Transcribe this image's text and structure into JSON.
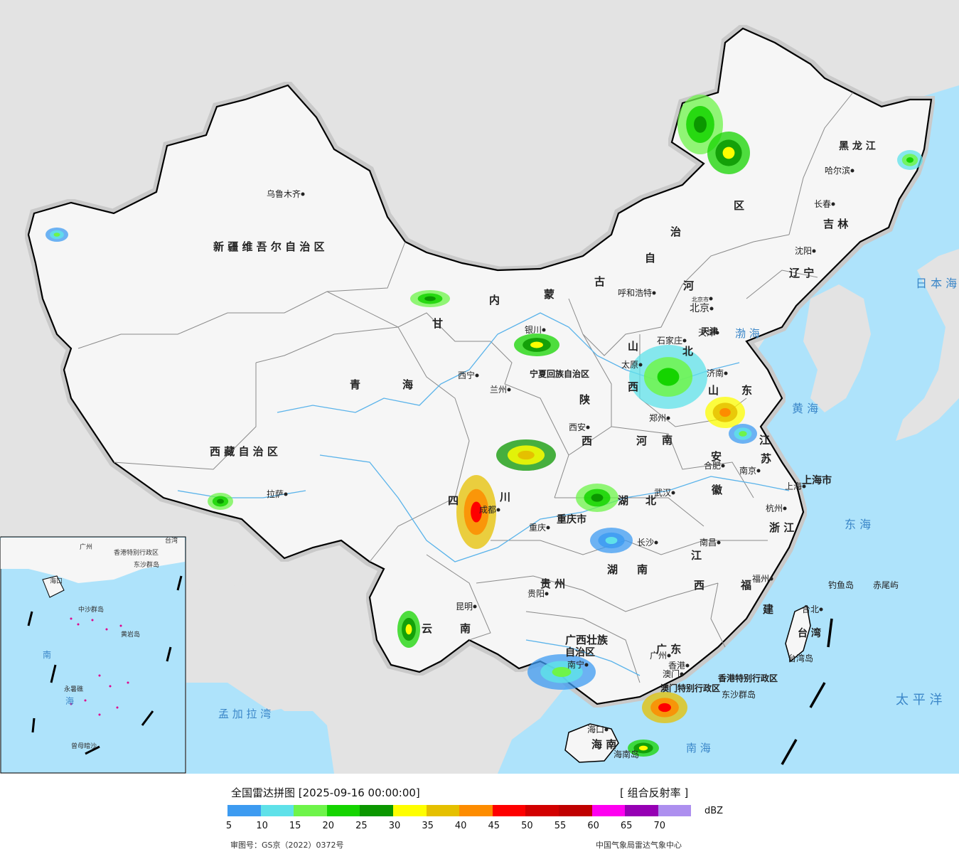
{
  "map": {
    "colors": {
      "sea": "#aee3fb",
      "foreign_land": "#e3e3e3",
      "china_land": "#f6f6f6",
      "border": "#000000",
      "province_line": "#8a8a8a",
      "river": "#5ab3ea"
    },
    "region_labels": [
      {
        "text": "新 疆 维 吾 尔 自 治 区",
        "kind": "province"
      },
      {
        "text": "西 藏 自 治 区",
        "kind": "province"
      },
      {
        "text": "青",
        "kind": "province"
      },
      {
        "text": "海",
        "kind": "province"
      },
      {
        "text": "甘",
        "kind": "province"
      },
      {
        "text": "内",
        "kind": "province"
      },
      {
        "text": "蒙",
        "kind": "province"
      },
      {
        "text": "古",
        "kind": "province"
      },
      {
        "text": "自",
        "kind": "province"
      },
      {
        "text": "治",
        "kind": "province"
      },
      {
        "text": "区",
        "kind": "province"
      },
      {
        "text": "黑 龙 江",
        "kind": "province"
      },
      {
        "text": "吉 林",
        "kind": "province"
      },
      {
        "text": "辽 宁",
        "kind": "province"
      },
      {
        "text": "河",
        "kind": "province"
      },
      {
        "text": "北",
        "kind": "province"
      },
      {
        "text": "山",
        "kind": "province"
      },
      {
        "text": "西",
        "kind": "province"
      },
      {
        "text": "山",
        "kind": "province"
      },
      {
        "text": "东",
        "kind": "province"
      },
      {
        "text": "河",
        "kind": "province"
      },
      {
        "text": "南",
        "kind": "province"
      },
      {
        "text": "陕",
        "kind": "province"
      },
      {
        "text": "西",
        "kind": "province"
      },
      {
        "text": "宁夏回族自治区",
        "kind": "province"
      },
      {
        "text": "江",
        "kind": "province"
      },
      {
        "text": "苏",
        "kind": "province"
      },
      {
        "text": "安",
        "kind": "province"
      },
      {
        "text": "徽",
        "kind": "province"
      },
      {
        "text": "上海市",
        "kind": "province"
      },
      {
        "text": "浙 江",
        "kind": "province"
      },
      {
        "text": "湖",
        "kind": "province"
      },
      {
        "text": "北",
        "kind": "province"
      },
      {
        "text": "湖",
        "kind": "province"
      },
      {
        "text": "南",
        "kind": "province"
      },
      {
        "text": "江",
        "kind": "province"
      },
      {
        "text": "西",
        "kind": "province"
      },
      {
        "text": "福",
        "kind": "province"
      },
      {
        "text": "建",
        "kind": "province"
      },
      {
        "text": "四",
        "kind": "province"
      },
      {
        "text": "川",
        "kind": "province"
      },
      {
        "text": "重庆市",
        "kind": "province"
      },
      {
        "text": "贵 州",
        "kind": "province"
      },
      {
        "text": "云",
        "kind": "province"
      },
      {
        "text": "南",
        "kind": "province"
      },
      {
        "text": "广西壮族",
        "kind": "province"
      },
      {
        "text": "自治区",
        "kind": "province"
      },
      {
        "text": "广 东",
        "kind": "province"
      },
      {
        "text": "海 南",
        "kind": "province"
      },
      {
        "text": "台 湾",
        "kind": "province"
      },
      {
        "text": "香港特别行政区",
        "kind": "province"
      },
      {
        "text": "澳门特别行政区",
        "kind": "province"
      },
      {
        "text": "天津",
        "kind": "province"
      },
      {
        "text": "日 本 海",
        "kind": "sea"
      },
      {
        "text": "渤 海",
        "kind": "sea"
      },
      {
        "text": "黄 海",
        "kind": "sea"
      },
      {
        "text": "东 海",
        "kind": "sea"
      },
      {
        "text": "太 平 洋",
        "kind": "sea"
      },
      {
        "text": "南 海",
        "kind": "sea"
      },
      {
        "text": "孟 加 拉 湾",
        "kind": "sea"
      },
      {
        "text": "东沙群岛",
        "kind": "island"
      },
      {
        "text": "钓鱼岛",
        "kind": "island"
      },
      {
        "text": "赤尾屿",
        "kind": "island"
      },
      {
        "text": "台湾岛",
        "kind": "island"
      },
      {
        "text": "海南岛",
        "kind": "island"
      }
    ],
    "cities": [
      {
        "name": "乌鲁木齐"
      },
      {
        "name": "拉萨"
      },
      {
        "name": "西宁"
      },
      {
        "name": "兰州"
      },
      {
        "name": "银川"
      },
      {
        "name": "呼和浩特"
      },
      {
        "name": "北京"
      },
      {
        "name": "北京市"
      },
      {
        "name": "天津"
      },
      {
        "name": "石家庄"
      },
      {
        "name": "太原"
      },
      {
        "name": "济南"
      },
      {
        "name": "郑州"
      },
      {
        "name": "西安"
      },
      {
        "name": "合肥"
      },
      {
        "name": "南京"
      },
      {
        "name": "上海"
      },
      {
        "name": "杭州"
      },
      {
        "name": "武汉"
      },
      {
        "name": "长沙"
      },
      {
        "name": "南昌"
      },
      {
        "name": "福州"
      },
      {
        "name": "台北"
      },
      {
        "name": "成都"
      },
      {
        "name": "重庆"
      },
      {
        "name": "贵阳"
      },
      {
        "name": "昆明"
      },
      {
        "name": "南宁"
      },
      {
        "name": "广州"
      },
      {
        "name": "香港"
      },
      {
        "name": "澳门"
      },
      {
        "name": "海口"
      },
      {
        "name": "哈尔滨"
      },
      {
        "name": "长春"
      },
      {
        "name": "沈阳"
      }
    ],
    "inset_labels": [
      {
        "text": "南"
      },
      {
        "text": "海"
      },
      {
        "text": "海口"
      },
      {
        "text": "广州"
      },
      {
        "text": "香港特别行政区"
      },
      {
        "text": "台湾"
      },
      {
        "text": "东沙群岛"
      },
      {
        "text": "中沙群岛"
      },
      {
        "text": "黄岩岛"
      },
      {
        "text": "永暑礁"
      },
      {
        "text": "曾母暗沙"
      }
    ],
    "radar_blobs": [
      {
        "region": "黑龙江西北部",
        "level_dbz": 25
      },
      {
        "region": "内蒙古东部",
        "level_dbz": 30
      },
      {
        "region": "黑龙江东部",
        "level_dbz": 20
      },
      {
        "region": "华北平原",
        "level_dbz": 20
      },
      {
        "region": "山东",
        "level_dbz": 40
      },
      {
        "region": "江苏北部",
        "level_dbz": 15
      },
      {
        "region": "陕西南部",
        "level_dbz": 35
      },
      {
        "region": "四川盆地",
        "level_dbz": 45
      },
      {
        "region": "湖北西部",
        "level_dbz": 25
      },
      {
        "region": "湖南北部",
        "level_dbz": 10
      },
      {
        "region": "广西南部",
        "level_dbz": 15
      },
      {
        "region": "广东西南部",
        "level_dbz": 45
      },
      {
        "region": "海南东北部",
        "level_dbz": 30
      },
      {
        "region": "甘肃",
        "level_dbz": 25
      },
      {
        "region": "宁夏",
        "level_dbz": 30
      },
      {
        "region": "新疆西北部",
        "level_dbz": 15
      },
      {
        "region": "西藏南部",
        "level_dbz": 25
      },
      {
        "region": "云南西部",
        "level_dbz": 30
      }
    ]
  },
  "legend": {
    "title": "全国雷达拼图 [2025-09-16 00:00:00]",
    "product": "[ 组合反射率 ]",
    "unit": "dBZ",
    "ticks": [
      "5",
      "10",
      "15",
      "20",
      "25",
      "30",
      "35",
      "40",
      "45",
      "50",
      "55",
      "60",
      "65",
      "70"
    ],
    "colors": [
      "#3d9bf1",
      "#5fe1e9",
      "#6ef44a",
      "#15d400",
      "#0b9700",
      "#fefe00",
      "#e5c000",
      "#fd8c00",
      "#fe0000",
      "#d20000",
      "#c00000",
      "#fe00f0",
      "#9600b4",
      "#ad8fef"
    ],
    "approval": "审图号：GS京（2022）0372号",
    "source": "中国气象局雷达气象中心"
  }
}
